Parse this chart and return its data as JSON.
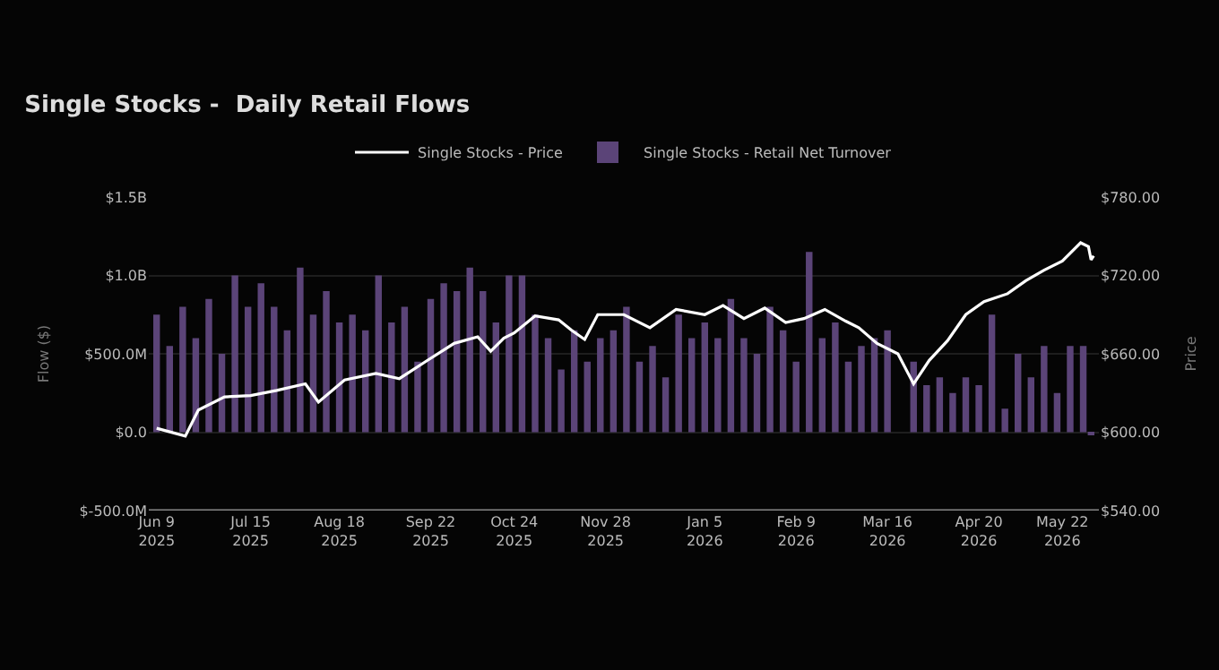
{
  "chart_data": {
    "type": "bar",
    "title": "Single Stocks -  Daily Retail Flows",
    "ylabel": "Flow ($)",
    "y2label": "Price",
    "series": [
      {
        "name": "Single Stocks - Price",
        "type": "line",
        "axis": "y2",
        "color": "#ffffff",
        "x": [
          "2025-06-09",
          "2025-06-20",
          "2025-06-25",
          "2025-07-05",
          "2025-07-15",
          "2025-07-25",
          "2025-08-05",
          "2025-08-10",
          "2025-08-20",
          "2025-09-01",
          "2025-09-10",
          "2025-09-20",
          "2025-10-01",
          "2025-10-10",
          "2025-10-15",
          "2025-10-20",
          "2025-10-24",
          "2025-11-01",
          "2025-11-10",
          "2025-11-15",
          "2025-11-20",
          "2025-11-25",
          "2025-12-05",
          "2025-12-15",
          "2025-12-25",
          "2026-01-05",
          "2026-01-12",
          "2026-01-20",
          "2026-01-28",
          "2026-02-05",
          "2026-02-12",
          "2026-02-20",
          "2026-02-28",
          "2026-03-05",
          "2026-03-12",
          "2026-03-20",
          "2026-03-26",
          "2026-04-01",
          "2026-04-08",
          "2026-04-15",
          "2026-04-22",
          "2026-05-01",
          "2026-05-08",
          "2026-05-15",
          "2026-05-22",
          "2026-05-29",
          "2026-06-01",
          "2026-06-02",
          "2026-06-03"
        ],
        "values": [
          603,
          597,
          617,
          627,
          628,
          632,
          637,
          623,
          640,
          645,
          641,
          654,
          668,
          673,
          662,
          672,
          676,
          689,
          686,
          678,
          671,
          690,
          690,
          680,
          694,
          690,
          697,
          687,
          695,
          684,
          687,
          694,
          685,
          680,
          668,
          660,
          637,
          655,
          670,
          690,
          700,
          706,
          716,
          724,
          731,
          745,
          742,
          732,
          735
        ]
      },
      {
        "name": "Single Stocks - Retail Net Turnover",
        "axis": "y",
        "color": "#5b4478",
        "x": [
          "2025-06-09",
          "2025-06-14",
          "2025-06-19",
          "2025-06-24",
          "2025-06-29",
          "2025-07-04",
          "2025-07-09",
          "2025-07-14",
          "2025-07-19",
          "2025-07-24",
          "2025-07-29",
          "2025-08-03",
          "2025-08-08",
          "2025-08-13",
          "2025-08-18",
          "2025-08-23",
          "2025-08-28",
          "2025-09-02",
          "2025-09-07",
          "2025-09-12",
          "2025-09-17",
          "2025-09-22",
          "2025-09-27",
          "2025-10-02",
          "2025-10-07",
          "2025-10-12",
          "2025-10-17",
          "2025-10-22",
          "2025-10-27",
          "2025-11-01",
          "2025-11-06",
          "2025-11-11",
          "2025-11-16",
          "2025-11-21",
          "2025-11-26",
          "2025-12-01",
          "2025-12-06",
          "2025-12-11",
          "2025-12-16",
          "2025-12-21",
          "2025-12-26",
          "2025-12-31",
          "2026-01-05",
          "2026-01-10",
          "2026-01-15",
          "2026-01-20",
          "2026-01-25",
          "2026-01-30",
          "2026-02-04",
          "2026-02-09",
          "2026-02-14",
          "2026-02-19",
          "2026-02-24",
          "2026-03-01",
          "2026-03-06",
          "2026-03-11",
          "2026-03-16",
          "2026-03-21",
          "2026-03-26",
          "2026-03-31",
          "2026-04-05",
          "2026-04-10",
          "2026-04-15",
          "2026-04-20",
          "2026-04-25",
          "2026-04-30",
          "2026-05-05",
          "2026-05-10",
          "2026-05-15",
          "2026-05-20",
          "2026-05-25",
          "2026-05-30",
          "2026-06-02"
        ],
        "values": [
          750000000,
          550000000,
          800000000,
          600000000,
          850000000,
          500000000,
          1000000000,
          800000000,
          950000000,
          800000000,
          650000000,
          1050000000,
          750000000,
          900000000,
          700000000,
          750000000,
          650000000,
          1000000000,
          700000000,
          800000000,
          450000000,
          850000000,
          950000000,
          900000000,
          1050000000,
          900000000,
          700000000,
          1000000000,
          1000000000,
          750000000,
          600000000,
          400000000,
          650000000,
          450000000,
          600000000,
          650000000,
          800000000,
          450000000,
          550000000,
          350000000,
          750000000,
          600000000,
          700000000,
          600000000,
          850000000,
          600000000,
          500000000,
          800000000,
          650000000,
          450000000,
          1150000000,
          600000000,
          700000000,
          450000000,
          550000000,
          600000000,
          650000000,
          0,
          450000000,
          300000000,
          350000000,
          250000000,
          350000000,
          300000000,
          750000000,
          150000000,
          500000000,
          350000000,
          550000000,
          250000000,
          550000000,
          550000000,
          -20000000
        ]
      }
    ],
    "xlim": [
      "2025-06-06",
      "2026-06-05"
    ],
    "xticks": [
      {
        "value": "2025-06-09",
        "label": "Jun 9\n2025"
      },
      {
        "value": "2025-07-15",
        "label": "Jul 15\n2025"
      },
      {
        "value": "2025-08-18",
        "label": "Aug 18\n2025"
      },
      {
        "value": "2025-09-22",
        "label": "Sep 22\n2025"
      },
      {
        "value": "2025-10-24",
        "label": "Oct 24\n2025"
      },
      {
        "value": "2025-11-28",
        "label": "Nov 28\n2025"
      },
      {
        "value": "2026-01-05",
        "label": "Jan 5\n2026"
      },
      {
        "value": "2026-02-09",
        "label": "Feb 9\n2026"
      },
      {
        "value": "2026-03-16",
        "label": "Mar 16\n2026"
      },
      {
        "value": "2026-04-20",
        "label": "Apr 20\n2026"
      },
      {
        "value": "2026-05-22",
        "label": "May 22\n2026"
      }
    ],
    "ylim": [
      -500000000,
      1500000000
    ],
    "yticks": [
      {
        "value": -500000000,
        "label": "$-500.0M"
      },
      {
        "value": 0,
        "label": "$0.0"
      },
      {
        "value": 500000000,
        "label": "$500.0M"
      },
      {
        "value": 1000000000,
        "label": "$1.0B"
      },
      {
        "value": 1500000000,
        "label": "$1.5B"
      }
    ],
    "y2lim": [
      540,
      780
    ],
    "y2ticks": [
      {
        "value": 540,
        "label": "$540.00"
      },
      {
        "value": 600,
        "label": "$600.00"
      },
      {
        "value": 660,
        "label": "$660.00"
      },
      {
        "value": 720,
        "label": "$720.00"
      },
      {
        "value": 780,
        "label": "$780.00"
      }
    ],
    "grid": "y",
    "legend": "top",
    "marker": "none",
    "line_style": "solid"
  }
}
